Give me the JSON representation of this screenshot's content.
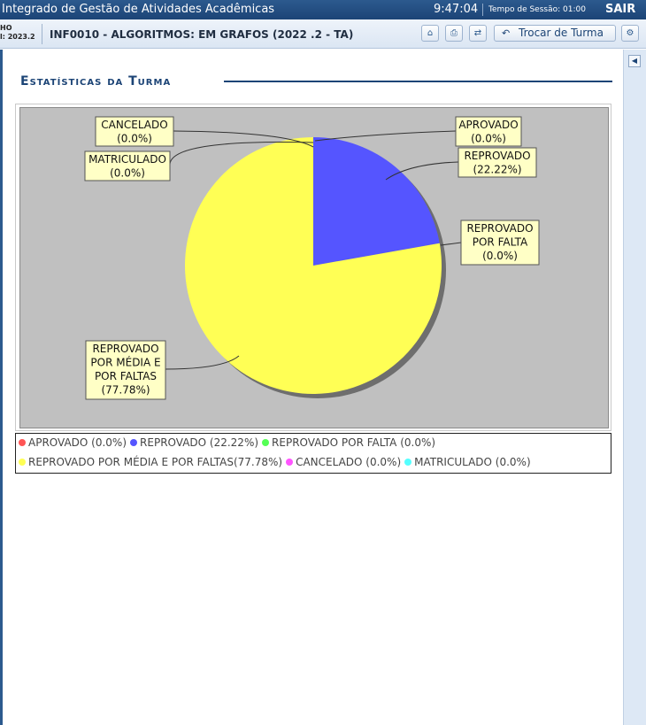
{
  "topbar": {
    "system_title": "Integrado de Gestão de Atividades Acadêmicas",
    "clock": "9:47:04",
    "session_label": "Tempo de Sessão: 01:00",
    "logout_label": "SAIR"
  },
  "subbar": {
    "user_line1": "HO",
    "user_line2": "l: 2023.2",
    "turma_title": "INF0010 - ALGORITMOS: EM GRAFOS (2022 .2 - TA)",
    "trocar_turma_label": "Trocar de Turma"
  },
  "section": {
    "title": "Estatísticas da Turma"
  },
  "colors": {
    "accent": "#1c4476",
    "plot_bg": "#c0c0c0"
  },
  "chart_data": {
    "type": "pie",
    "title": "Estatísticas da Turma",
    "slices": [
      {
        "label": "APROVADO",
        "value": 0.0,
        "display": "(0.0%)",
        "color": "#ff5555"
      },
      {
        "label": "REPROVADO",
        "value": 22.22,
        "display": "(22.22%)",
        "color": "#5555ff"
      },
      {
        "label": "REPROVADO POR FALTA",
        "value": 0.0,
        "display": "(0.0%)",
        "color": "#55ff55"
      },
      {
        "label": "REPROVADO POR MÉDIA E POR FALTAS",
        "value": 77.78,
        "display": "(77.78%)",
        "color": "#ffff55"
      },
      {
        "label": "CANCELADO",
        "value": 0.0,
        "display": "(0.0%)",
        "color": "#ff55ff"
      },
      {
        "label": "MATRICULADO",
        "value": 0.0,
        "display": "(0.0%)",
        "color": "#55ffff"
      }
    ],
    "callouts": [
      {
        "lines": [
          "APROVADO",
          "(0.0%)"
        ]
      },
      {
        "lines": [
          "REPROVADO",
          "(22.22%)"
        ]
      },
      {
        "lines": [
          "REPROVADO",
          "POR FALTA",
          "(0.0%)"
        ]
      },
      {
        "lines": [
          "REPROVADO",
          "POR MÉDIA E",
          "POR FALTAS",
          "(77.78%)"
        ]
      },
      {
        "lines": [
          "CANCELADO",
          "(0.0%)"
        ]
      },
      {
        "lines": [
          "MATRICULADO",
          "(0.0%)"
        ]
      }
    ],
    "legend": [
      {
        "text": "APROVADO (0.0%)",
        "color": "#ff5555"
      },
      {
        "text": "REPROVADO (22.22%)",
        "color": "#5555ff"
      },
      {
        "text": "REPROVADO POR FALTA (0.0%)",
        "color": "#55ff55"
      },
      {
        "text": "REPROVADO POR MÉDIA E POR FALTAS(77.78%)",
        "color": "#ffff55"
      },
      {
        "text": "CANCELADO (0.0%)",
        "color": "#ff55ff"
      },
      {
        "text": "MATRICULADO (0.0%)",
        "color": "#55ffff"
      }
    ],
    "legend_position": "bottom"
  }
}
